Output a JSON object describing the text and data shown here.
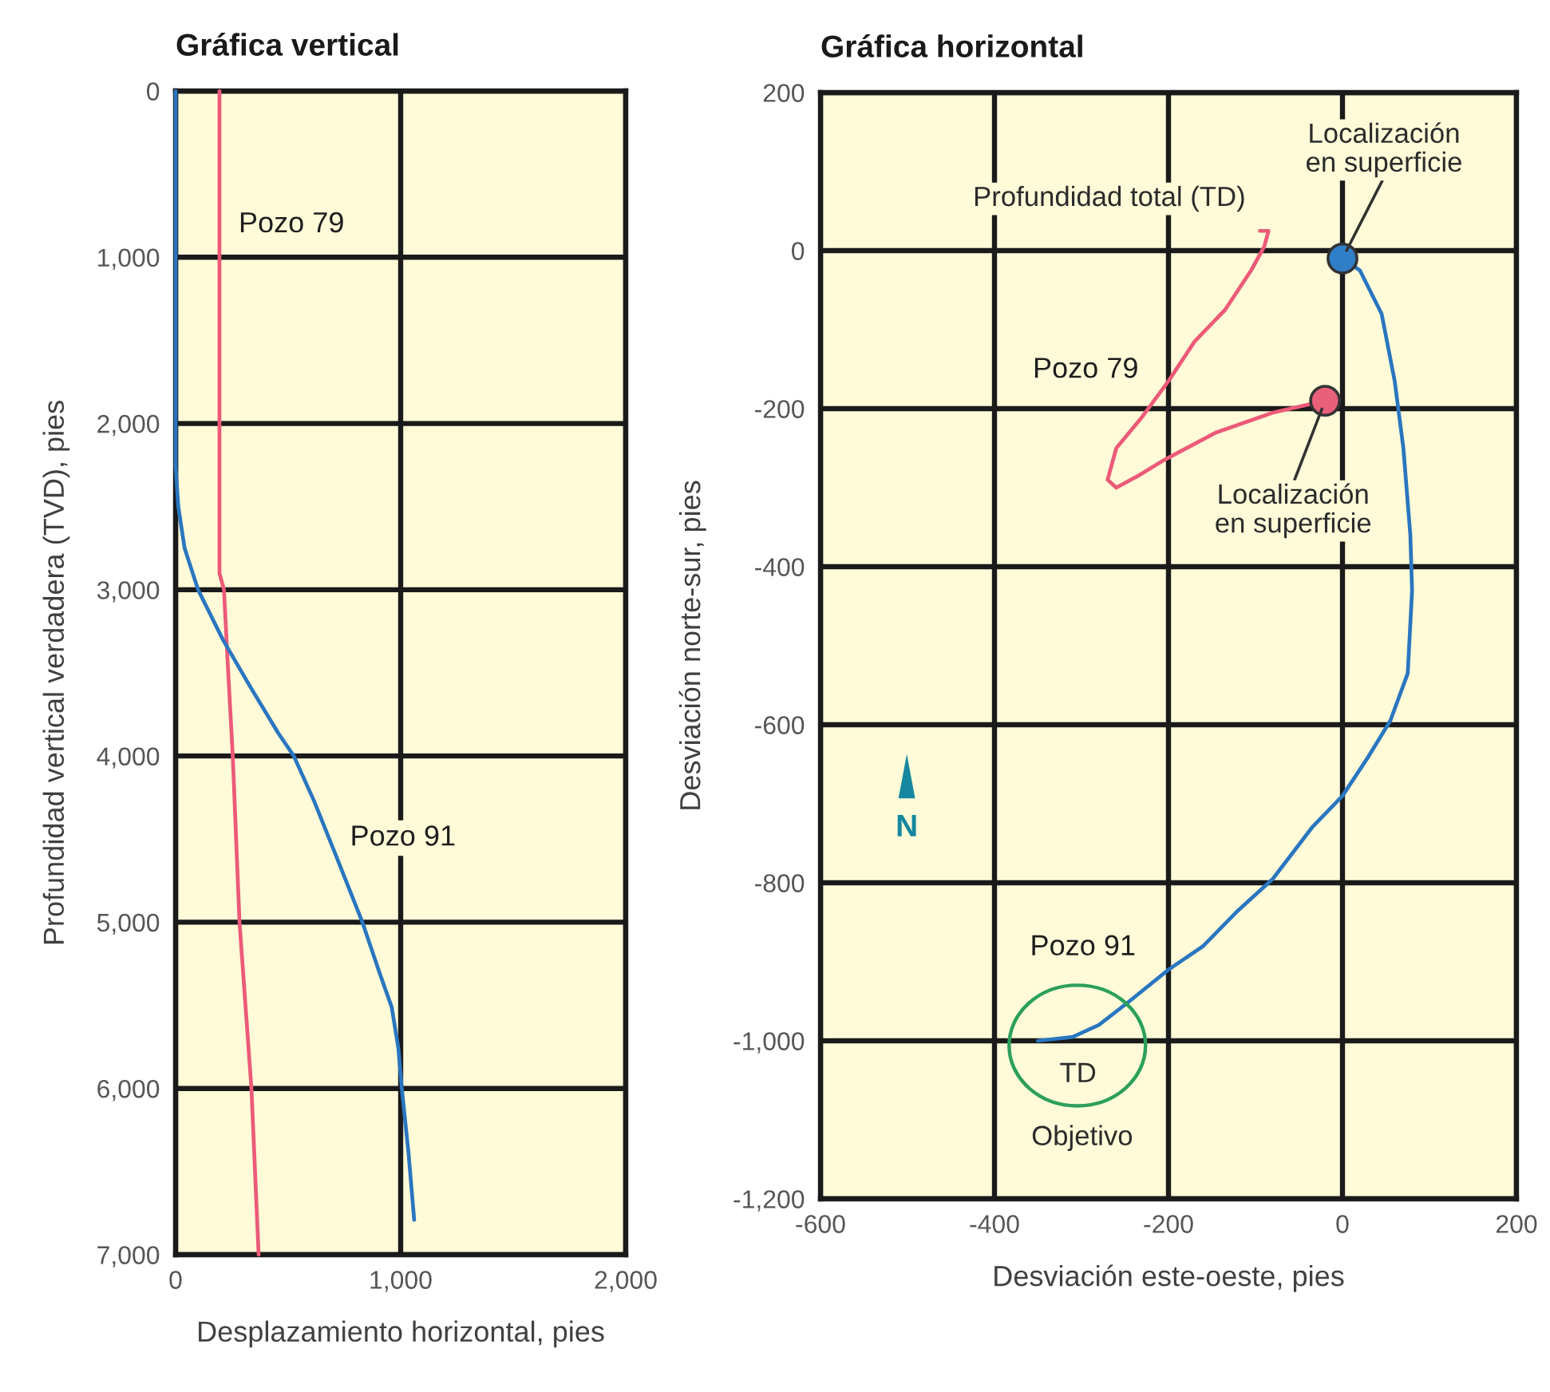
{
  "chart_data": [
    {
      "type": "line",
      "title": "Gráfica vertical",
      "xlabel": "Desplazamiento horizontal, pies",
      "ylabel": "Profundidad vertical verdadera (TVD), pies",
      "xlim": [
        0,
        2000
      ],
      "ylim": [
        7000,
        0
      ],
      "xticks": [
        0,
        {
          "value": 1000,
          "label": "1,000"
        },
        {
          "value": 2000,
          "label": "2,000"
        }
      ],
      "yticks": [
        0,
        {
          "value": 1000,
          "label": "1,000"
        },
        {
          "value": 2000,
          "label": "2,000"
        },
        {
          "value": 3000,
          "label": "3,000"
        },
        {
          "value": 4000,
          "label": "4,000"
        },
        {
          "value": 5000,
          "label": "5,000"
        },
        {
          "value": 6000,
          "label": "6,000"
        },
        {
          "value": 7000,
          "label": "7,000"
        }
      ],
      "grid": true,
      "series": [
        {
          "name": "Pozo 79",
          "color": "#ec5a78",
          "x": [
            195,
            195,
            215,
            230,
            254,
            284,
            337,
            369
          ],
          "values": [
            0,
            2900,
            3000,
            3400,
            4000,
            5000,
            6000,
            7000
          ]
        },
        {
          "name": "Pozo 91",
          "color": "#2a76c0",
          "x": [
            0,
            0,
            12,
            40,
            100,
            210,
            330,
            455,
            525,
            615,
            710,
            830,
            910,
            960,
            990,
            1005,
            1035,
            1060
          ],
          "values": [
            0,
            2260,
            2500,
            2750,
            3000,
            3300,
            3580,
            3860,
            4000,
            4270,
            4590,
            5000,
            5320,
            5510,
            5760,
            6000,
            6390,
            6790
          ]
        }
      ]
    },
    {
      "type": "line",
      "title": "Gráfica horizontal",
      "xlabel": "Desviación este-oeste, pies",
      "ylabel": "Desviación norte-sur, pies",
      "xlim": [
        -600,
        200
      ],
      "ylim": [
        -1200,
        200
      ],
      "xticks": [
        -600,
        -400,
        -200,
        0,
        200
      ],
      "yticks": [
        {
          "value": -1200,
          "label": "-1,200"
        },
        {
          "value": -1000,
          "label": "-1,000"
        },
        -800,
        -600,
        -400,
        -200,
        0,
        200
      ],
      "grid": true,
      "series": [
        {
          "name": "Pozo 79",
          "color": "#ec5a78",
          "x": [
            -20,
            -80,
            -145,
            -205,
            -235,
            -260,
            -270,
            -260,
            -230,
            -200,
            -170,
            -135,
            -105,
            -90,
            -85,
            -95
          ],
          "values": [
            -190,
            -205,
            -230,
            -265,
            -285,
            -300,
            -290,
            -250,
            -210,
            -165,
            -115,
            -75,
            -25,
            5,
            25,
            25
          ]
        },
        {
          "name": "Pozo 91",
          "color": "#2a76c0",
          "x": [
            0,
            20,
            45,
            60,
            70,
            78,
            80,
            75,
            55,
            30,
            0,
            -35,
            -80,
            -120,
            -160,
            -200,
            -245,
            -280,
            -310,
            -350
          ],
          "values": [
            -10,
            -25,
            -80,
            -165,
            -250,
            -360,
            -430,
            -535,
            -595,
            -640,
            -690,
            -730,
            -795,
            -835,
            -880,
            -910,
            -950,
            -980,
            -995,
            -1000
          ]
        },
        {
          "type": "scatter",
          "marker": "circle",
          "color": "#e8607a",
          "x": [
            -20
          ],
          "values": [
            -190
          ]
        },
        {
          "type": "scatter",
          "marker": "circle",
          "color": "#2f7fc8",
          "x": [
            0
          ],
          "values": [
            -10
          ]
        }
      ],
      "annotations": [
        {
          "text": "Localización\nen superficie",
          "x": 0,
          "y": -10
        },
        "Profundidad total (TD)",
        {
          "text": "Localización\nen superficie",
          "x": -20,
          "y": -190
        },
        "TD",
        "Objetivo",
        "N"
      ]
    }
  ]
}
